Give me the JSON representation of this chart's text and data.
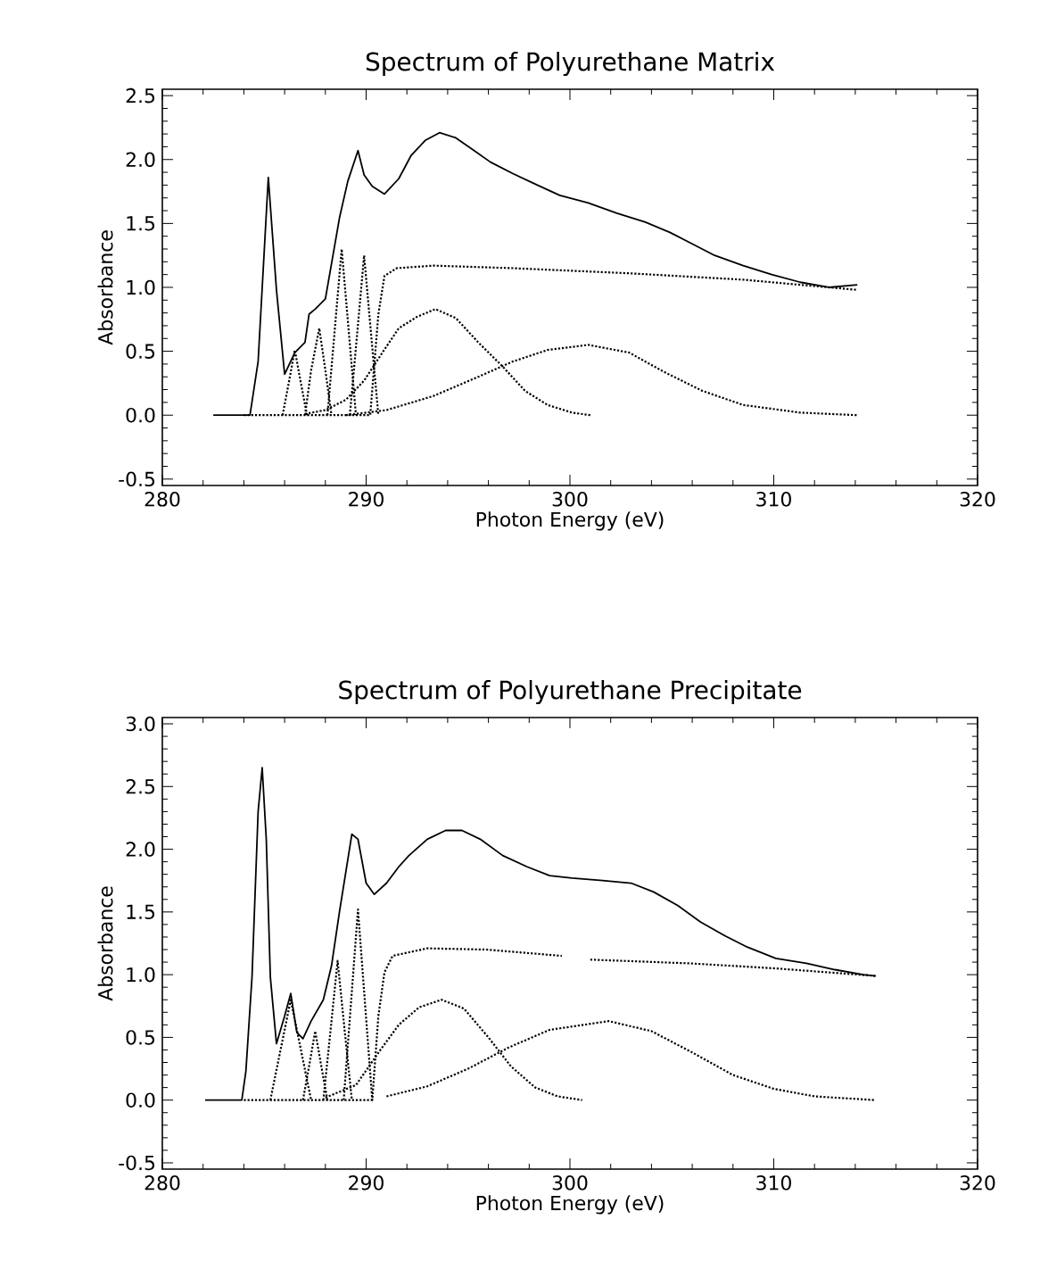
{
  "chart_data": [
    {
      "type": "line",
      "title": "Spectrum of Polyurethane Matrix",
      "xlabel": "Photon Energy (eV)",
      "ylabel": "Absorbance",
      "xlim": [
        280,
        320
      ],
      "ylim": [
        -0.55,
        2.55
      ],
      "xticks": [
        280,
        290,
        300,
        310,
        320
      ],
      "yticks": [
        -0.5,
        {
          "value": 0,
          "label": "0.0"
        },
        0.5,
        {
          "value": 1,
          "label": "1.0"
        },
        1.5,
        {
          "value": 2,
          "label": "2.0"
        },
        2.5
      ],
      "series": [
        {
          "color": "#000000",
          "line_style": "solid",
          "x": [
            282.5,
            284.3,
            284.7,
            285.2,
            285.6,
            286.0,
            286.5,
            287.0,
            287.2,
            287.5,
            288.0,
            288.7,
            289.1,
            289.6,
            289.9,
            290.3,
            290.9,
            291.6,
            292.2,
            292.9,
            293.6,
            294.4,
            295.3,
            296.1,
            297.2,
            298.4,
            299.5,
            300.9,
            302.3,
            303.7,
            304.9,
            306.0,
            307.1,
            308.5,
            309.9,
            311.3,
            312.7,
            314.1
          ],
          "values": [
            0.0,
            0.0,
            0.42,
            1.86,
            0.98,
            0.32,
            0.49,
            0.57,
            0.79,
            0.83,
            0.91,
            1.55,
            1.83,
            2.07,
            1.88,
            1.79,
            1.73,
            1.85,
            2.03,
            2.15,
            2.21,
            2.17,
            2.07,
            1.98,
            1.89,
            1.8,
            1.72,
            1.66,
            1.58,
            1.51,
            1.43,
            1.34,
            1.25,
            1.17,
            1.1,
            1.04,
            1.0,
            1.02
          ]
        },
        {
          "color": "#000000",
          "line_style": "dotted",
          "x": [
            284.0,
            290.2,
            290.6,
            290.9,
            291.5,
            293.3,
            297.2,
            302.9,
            308.5,
            314.1
          ],
          "values": [
            0.0,
            0.0,
            0.79,
            1.09,
            1.15,
            1.17,
            1.15,
            1.11,
            1.06,
            0.98
          ]
        },
        {
          "color": "#000000",
          "line_style": "dotted",
          "x": [
            285.9,
            286.2,
            286.5,
            286.8,
            287.1
          ],
          "values": [
            0.0,
            0.25,
            0.51,
            0.25,
            0.0
          ]
        },
        {
          "color": "#000000",
          "line_style": "dotted",
          "x": [
            287.0,
            287.3,
            287.7,
            288.0,
            288.3
          ],
          "values": [
            0.0,
            0.35,
            0.68,
            0.35,
            0.0
          ]
        },
        {
          "color": "#000000",
          "line_style": "dotted",
          "x": [
            288.1,
            288.45,
            288.8,
            289.15,
            289.5
          ],
          "values": [
            0.0,
            0.65,
            1.3,
            0.65,
            0.0
          ]
        },
        {
          "color": "#000000",
          "line_style": "dotted",
          "x": [
            289.2,
            289.55,
            289.9,
            290.25,
            290.6
          ],
          "values": [
            0.0,
            0.62,
            1.25,
            0.62,
            0.0
          ]
        },
        {
          "color": "#000000",
          "line_style": "dotted",
          "x": [
            287.0,
            288.0,
            289.0,
            289.9,
            290.8,
            291.6,
            292.5,
            293.4,
            294.4,
            295.5,
            296.7,
            297.8,
            298.9,
            300.1,
            301.0
          ],
          "values": [
            0.01,
            0.04,
            0.12,
            0.27,
            0.49,
            0.68,
            0.77,
            0.83,
            0.76,
            0.57,
            0.38,
            0.19,
            0.08,
            0.02,
            0.0
          ]
        },
        {
          "color": "#000000",
          "line_style": "dotted",
          "x": [
            289.0,
            291.0,
            293.3,
            295.5,
            297.2,
            298.9,
            300.9,
            302.9,
            304.6,
            306.5,
            308.5,
            311.3,
            314.1
          ],
          "values": [
            0.0,
            0.04,
            0.15,
            0.3,
            0.42,
            0.51,
            0.55,
            0.49,
            0.34,
            0.19,
            0.08,
            0.02,
            0.0
          ]
        }
      ]
    },
    {
      "type": "line",
      "title": "Spectrum of Polyurethane Precipitate",
      "xlabel": "Photon Energy (eV)",
      "ylabel": "Absorbance",
      "xlim": [
        280,
        320
      ],
      "ylim": [
        -0.55,
        3.05
      ],
      "xticks": [
        280,
        290,
        300,
        310,
        320
      ],
      "yticks": [
        -0.5,
        {
          "value": 0,
          "label": "0.0"
        },
        0.5,
        {
          "value": 1,
          "label": "1.0"
        },
        1.5,
        {
          "value": 2,
          "label": "2.0"
        },
        2.5,
        {
          "value": 3,
          "label": "3.0"
        }
      ],
      "series": [
        {
          "color": "#000000",
          "line_style": "solid",
          "x": [
            282.1,
            283.9,
            284.1,
            284.4,
            284.7,
            284.9,
            285.1,
            285.3,
            285.6,
            286.0,
            286.3,
            286.6,
            286.9,
            287.3,
            287.9,
            288.3,
            288.7,
            289.3,
            289.6,
            290.0,
            290.4,
            291.0,
            291.6,
            292.1,
            293.0,
            293.9,
            294.7,
            295.6,
            296.7,
            297.9,
            299.0,
            300.1,
            301.6,
            303.0,
            304.1,
            305.3,
            306.4,
            307.6,
            308.7,
            310.1,
            311.6,
            313.0,
            314.4,
            315.0
          ],
          "values": [
            0.0,
            0.0,
            0.23,
            0.98,
            2.3,
            2.65,
            2.08,
            0.98,
            0.45,
            0.67,
            0.85,
            0.54,
            0.49,
            0.63,
            0.8,
            1.07,
            1.51,
            2.12,
            2.08,
            1.73,
            1.64,
            1.73,
            1.86,
            1.95,
            2.08,
            2.15,
            2.15,
            2.08,
            1.95,
            1.86,
            1.79,
            1.77,
            1.75,
            1.73,
            1.66,
            1.55,
            1.42,
            1.31,
            1.22,
            1.13,
            1.09,
            1.04,
            1.0,
            0.99
          ]
        },
        {
          "color": "#000000",
          "line_style": "dotted",
          "x": [
            284.0,
            290.3,
            290.6,
            290.9,
            291.3,
            293.0,
            295.9,
            299.6,
            300.3,
            301.0,
            305.9,
            310.1,
            315.0
          ],
          "values": [
            0.0,
            0.0,
            0.67,
            1.02,
            1.15,
            1.21,
            1.2,
            1.15,
            null,
            1.12,
            1.09,
            1.05,
            0.99
          ]
        },
        {
          "color": "#000000",
          "line_style": "dotted",
          "x": [
            285.3,
            285.8,
            286.3,
            286.8,
            287.3
          ],
          "values": [
            0.0,
            0.4,
            0.8,
            0.4,
            0.0
          ]
        },
        {
          "color": "#000000",
          "line_style": "dotted",
          "x": [
            286.9,
            287.2,
            287.5,
            287.8,
            288.1
          ],
          "values": [
            0.0,
            0.27,
            0.55,
            0.27,
            0.0
          ]
        },
        {
          "color": "#000000",
          "line_style": "dotted",
          "x": [
            287.9,
            288.25,
            288.6,
            288.95,
            289.3
          ],
          "values": [
            0.0,
            0.55,
            1.11,
            0.55,
            0.0
          ]
        },
        {
          "color": "#000000",
          "line_style": "dotted",
          "x": [
            288.9,
            289.25,
            289.6,
            289.95,
            290.3
          ],
          "values": [
            0.0,
            0.76,
            1.52,
            0.76,
            0.0
          ]
        },
        {
          "color": "#000000",
          "line_style": "dotted",
          "x": [
            288.0,
            289.5,
            290.7,
            291.6,
            292.6,
            293.7,
            294.8,
            296.0,
            297.1,
            298.3,
            299.4,
            300.6
          ],
          "values": [
            0.02,
            0.12,
            0.4,
            0.6,
            0.74,
            0.8,
            0.73,
            0.5,
            0.27,
            0.1,
            0.03,
            0.0
          ]
        },
        {
          "color": "#000000",
          "line_style": "dotted",
          "x": [
            291.0,
            293.0,
            295.0,
            297.0,
            299.0,
            301.9,
            304.0,
            306.0,
            308.0,
            310.0,
            312.0,
            315.0
          ],
          "values": [
            0.03,
            0.11,
            0.25,
            0.42,
            0.56,
            0.63,
            0.55,
            0.38,
            0.2,
            0.09,
            0.03,
            0.0
          ]
        }
      ]
    }
  ]
}
